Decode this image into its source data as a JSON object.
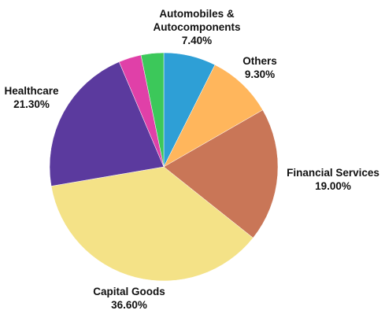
{
  "chart_data": {
    "type": "pie",
    "title": "",
    "start_angle_deg": 0,
    "direction": "clockwise",
    "slices": [
      {
        "label_lines": [
          "Automobiles &",
          "Autocomponents",
          "7.40%"
        ],
        "name": "Automobiles & Autocomponents",
        "value": 7.4,
        "color": "#2E9FD6",
        "label_anchor": "middle"
      },
      {
        "label_lines": [
          "Others",
          "9.30%"
        ],
        "name": "Others",
        "value": 9.3,
        "color": "#FFB65C",
        "label_anchor": "middle"
      },
      {
        "label_lines": [
          "Financial Services",
          "19.00%"
        ],
        "name": "Financial Services",
        "value": 19.0,
        "color": "#C97657",
        "label_anchor": "middle"
      },
      {
        "label_lines": [
          "Capital Goods",
          "36.60%"
        ],
        "name": "Capital Goods",
        "value": 36.6,
        "color": "#F4E287",
        "label_anchor": "middle"
      },
      {
        "label_lines": [
          "Healthcare",
          "21.30%"
        ],
        "name": "Healthcare",
        "value": 21.3,
        "color": "#5B3A9E",
        "label_anchor": "middle"
      },
      {
        "label_lines": [],
        "name": "",
        "value": 3.2,
        "color": "#E040A8",
        "label_anchor": "middle"
      },
      {
        "label_lines": [],
        "name": "",
        "value": 3.2,
        "color": "#3CC85A",
        "label_anchor": "middle"
      }
    ]
  }
}
